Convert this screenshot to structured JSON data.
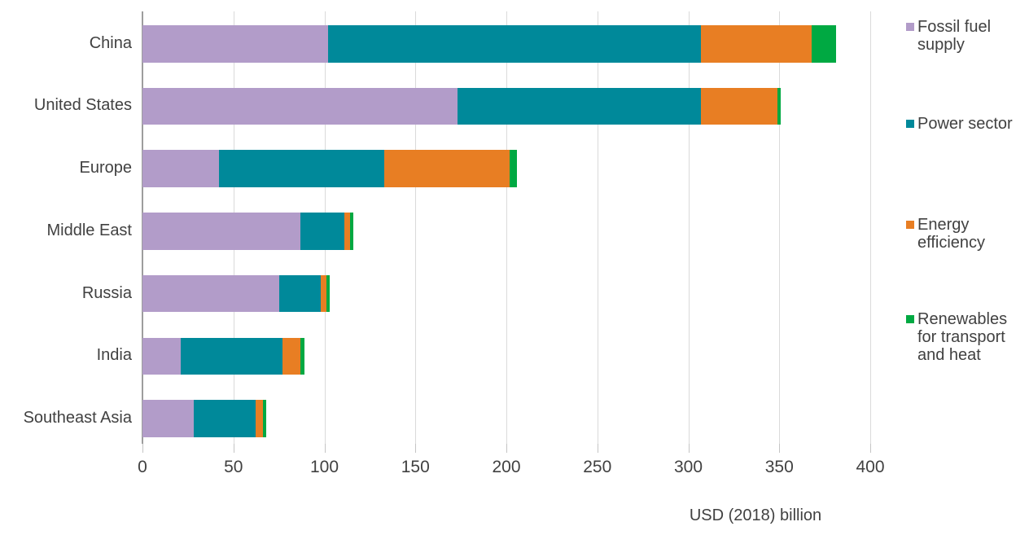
{
  "chart_data": {
    "type": "bar",
    "orientation": "horizontal",
    "stacked": true,
    "title": "",
    "xlabel": "USD (2018) billion",
    "ylabel": "",
    "xlim": [
      0,
      400
    ],
    "xticks": [
      0,
      50,
      100,
      150,
      200,
      250,
      300,
      350,
      400
    ],
    "grid": true,
    "legend_position": "right",
    "categories": [
      "China",
      "United States",
      "Europe",
      "Middle East",
      "Russia",
      "India",
      "Southeast Asia"
    ],
    "series": [
      {
        "name": "Fossil fuel supply",
        "color": "#B29CC9",
        "values": [
          102,
          173,
          42,
          87,
          75,
          21,
          28
        ]
      },
      {
        "name": "Power sector",
        "color": "#00899A",
        "values": [
          205,
          134,
          91,
          24,
          23,
          56,
          34
        ]
      },
      {
        "name": "Energy efficiency",
        "color": "#E87E23",
        "values": [
          61,
          42,
          69,
          3,
          3,
          10,
          4
        ]
      },
      {
        "name": "Renewables for transport and heat",
        "color": "#00A942",
        "values": [
          13,
          2,
          4,
          2,
          2,
          2,
          2
        ]
      }
    ],
    "totals": [
      381,
      351,
      206,
      116,
      103,
      89,
      68
    ]
  },
  "colors": {
    "text": "#414141",
    "gridline": "#dadada",
    "axis": "#9d9d9d"
  }
}
